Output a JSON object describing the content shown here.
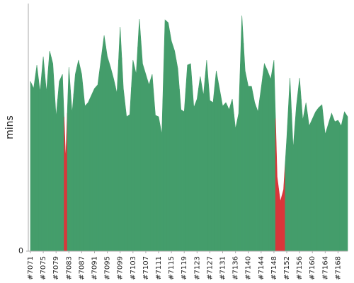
{
  "chart_data": {
    "type": "area",
    "y_label": "mins",
    "categories": [
      "#7071",
      null,
      null,
      null,
      "#7075",
      null,
      null,
      null,
      "#7079",
      null,
      null,
      null,
      "#7083",
      null,
      null,
      null,
      "#7087",
      null,
      null,
      null,
      "#7091",
      null,
      null,
      null,
      "#7095",
      null,
      null,
      null,
      "#7099",
      null,
      null,
      null,
      "#7103",
      null,
      null,
      null,
      "#7107",
      null,
      null,
      null,
      "#7111",
      null,
      null,
      null,
      "#7115",
      null,
      null,
      null,
      "#7119",
      null,
      null,
      null,
      "#7123",
      null,
      null,
      null,
      "#7127",
      null,
      null,
      null,
      "#7131",
      null,
      null,
      null,
      "#7136",
      null,
      null,
      null,
      "#7140",
      null,
      null,
      null,
      "#7144",
      null,
      null,
      null,
      "#7148",
      null,
      null,
      null,
      "#7152",
      null,
      null,
      null,
      "#7156",
      null,
      null,
      null,
      "#7160",
      null,
      null,
      null,
      "#7164",
      null,
      null,
      null,
      "#7168",
      null,
      null,
      null
    ],
    "values": [
      240,
      230,
      263,
      225,
      275,
      225,
      283,
      265,
      190,
      240,
      250,
      130,
      260,
      195,
      250,
      270,
      250,
      205,
      210,
      220,
      230,
      235,
      270,
      305,
      275,
      260,
      243,
      223,
      317,
      230,
      190,
      193,
      270,
      250,
      328,
      265,
      250,
      235,
      250,
      192,
      190,
      165,
      327,
      323,
      297,
      283,
      258,
      200,
      197,
      263,
      265,
      203,
      215,
      247,
      220,
      270,
      213,
      210,
      255,
      230,
      205,
      210,
      200,
      215,
      173,
      195,
      333,
      255,
      233,
      233,
      210,
      197,
      230,
      265,
      255,
      243,
      270,
      105,
      70,
      87,
      160,
      245,
      145,
      205,
      245,
      185,
      210,
      177,
      187,
      197,
      203,
      207,
      165,
      180,
      195,
      183,
      185,
      177,
      197,
      190
    ],
    "color": "#449d6b",
    "failure_color": "#d9363a",
    "failures": [
      11,
      77,
      78,
      79
    ],
    "ylim": [
      0,
      350
    ],
    "yticks": [
      0
    ]
  }
}
